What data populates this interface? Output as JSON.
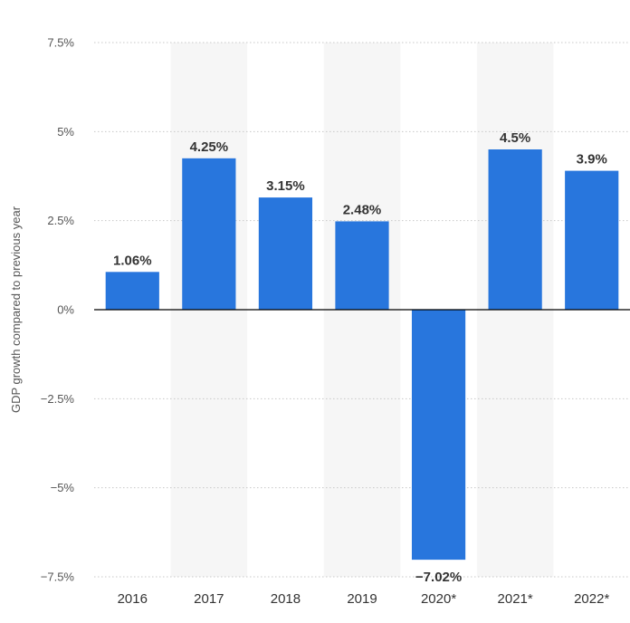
{
  "chart_data": {
    "type": "bar",
    "title": "",
    "xlabel": "",
    "ylabel": "GDP growth compared to previous year",
    "categories": [
      "2016",
      "2017",
      "2018",
      "2019",
      "2020*",
      "2021*",
      "2022*"
    ],
    "values": [
      1.06,
      4.25,
      3.15,
      2.48,
      -7.02,
      4.5,
      3.9
    ],
    "data_labels": [
      "1.06%",
      "4.25%",
      "3.15%",
      "2.48%",
      "−7.02%",
      "4.5%",
      "3.9%"
    ],
    "ylim": [
      -7.5,
      7.5
    ],
    "yticks": [
      7.5,
      5,
      2.5,
      0,
      -2.5,
      -5,
      -7.5
    ],
    "ytick_labels": [
      "7.5%",
      "5%",
      "2.5%",
      "0%",
      "−2.5%",
      "−5%",
      "−7.5%"
    ],
    "grid": true,
    "alternate_band_color": "#f6f6f6",
    "bar_color": "#2876dd",
    "zero_line_color": "#000000",
    "grid_color": "#c8c8c8"
  }
}
